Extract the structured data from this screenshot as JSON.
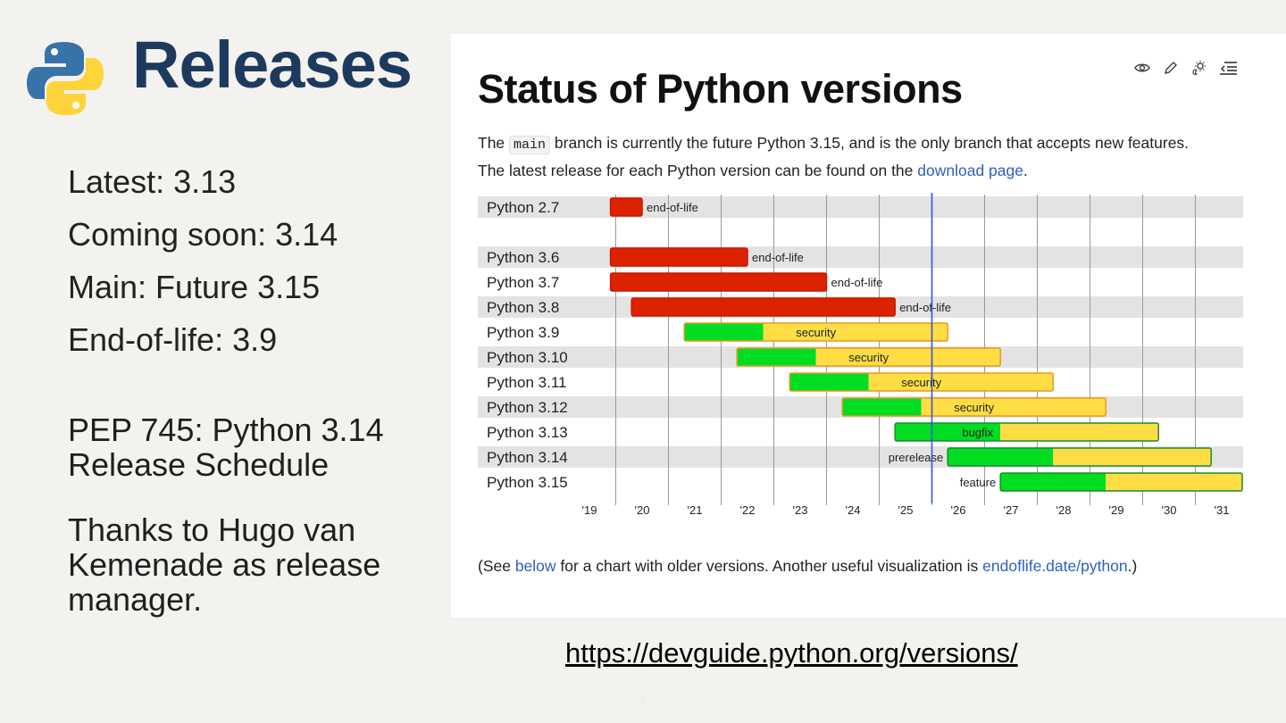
{
  "slide": {
    "title": "Releases",
    "facts": [
      "Latest: 3.13",
      "Coming soon: 3.14",
      "Main: Future 3.15",
      "End-of-life: 3.9"
    ],
    "pep_text": "PEP 745: Python 3.14 Release Schedule",
    "thanks_text": "Thanks to Hugo van Kemenade as release manager.",
    "url": "https://devguide.python.org/versions/",
    "page_number": "2"
  },
  "doc": {
    "heading": "Status of Python versions",
    "intro_before": "The ",
    "intro_code": "main",
    "intro_middle": " branch is currently the future Python 3.15, and is the only branch that accepts new features. The latest release for each Python version can be found on the ",
    "intro_link": "download page",
    "intro_end": ".",
    "foot_before": "(See ",
    "foot_link1": "below",
    "foot_middle": " for a chart with older versions. Another useful visualization is ",
    "foot_link2": "endoflife.date/python",
    "foot_end": ".)",
    "toolbar_icons": [
      "view-source-icon",
      "edit-icon",
      "theme-toggle-icon",
      "table-of-contents-icon"
    ]
  },
  "chart_data": {
    "type": "bar",
    "x_ticks": [
      "'19",
      "'20",
      "'21",
      "'22",
      "'23",
      "'24",
      "'25",
      "'26",
      "'27",
      "'28",
      "'29",
      "'30",
      "'31"
    ],
    "xlim": [
      2019.0,
      2031.5
    ],
    "today": 2025.0,
    "colors": {
      "end-of-life": "#dd2200",
      "security": "#ffdd44",
      "bugfix": "#00dd22",
      "feature": "#00dd22",
      "prerelease": "#00dd22",
      "today_line": "#3355dd",
      "grid": "#9a9a9a",
      "stripe": "#e3e3e3"
    },
    "rows": [
      {
        "label": "Python 2.7",
        "segments": [
          {
            "start": 2018.9,
            "end": 2019.5,
            "status": "end-of-life"
          }
        ],
        "text": "end-of-life",
        "text_pos": "after"
      },
      {
        "label": "",
        "segments": [],
        "text": "",
        "text_pos": "none"
      },
      {
        "label": "Python 3.6",
        "segments": [
          {
            "start": 2018.9,
            "end": 2021.5,
            "status": "end-of-life"
          }
        ],
        "text": "end-of-life",
        "text_pos": "after"
      },
      {
        "label": "Python 3.7",
        "segments": [
          {
            "start": 2018.9,
            "end": 2023.0,
            "status": "end-of-life"
          }
        ],
        "text": "end-of-life",
        "text_pos": "after"
      },
      {
        "label": "Python 3.8",
        "segments": [
          {
            "start": 2019.3,
            "end": 2024.3,
            "status": "end-of-life"
          }
        ],
        "text": "end-of-life",
        "text_pos": "after"
      },
      {
        "label": "Python 3.9",
        "segments": [
          {
            "start": 2020.3,
            "end": 2021.8,
            "status": "bugfix"
          },
          {
            "start": 2021.8,
            "end": 2025.3,
            "status": "security"
          }
        ],
        "text": "security",
        "text_pos": "inside"
      },
      {
        "label": "Python 3.10",
        "segments": [
          {
            "start": 2021.3,
            "end": 2022.8,
            "status": "bugfix"
          },
          {
            "start": 2022.8,
            "end": 2026.3,
            "status": "security"
          }
        ],
        "text": "security",
        "text_pos": "inside"
      },
      {
        "label": "Python 3.11",
        "segments": [
          {
            "start": 2022.3,
            "end": 2023.8,
            "status": "bugfix"
          },
          {
            "start": 2023.8,
            "end": 2027.3,
            "status": "security"
          }
        ],
        "text": "security",
        "text_pos": "inside"
      },
      {
        "label": "Python 3.12",
        "segments": [
          {
            "start": 2023.3,
            "end": 2024.8,
            "status": "bugfix"
          },
          {
            "start": 2024.8,
            "end": 2028.3,
            "status": "security"
          }
        ],
        "text": "security",
        "text_pos": "inside"
      },
      {
        "label": "Python 3.13",
        "segments": [
          {
            "start": 2024.3,
            "end": 2026.3,
            "status": "bugfix"
          },
          {
            "start": 2026.3,
            "end": 2029.3,
            "status": "security"
          }
        ],
        "text": "bugfix",
        "text_pos": "inside"
      },
      {
        "label": "Python 3.14",
        "segments": [
          {
            "start": 2025.3,
            "end": 2027.3,
            "status": "bugfix"
          },
          {
            "start": 2027.3,
            "end": 2030.3,
            "status": "security"
          }
        ],
        "text": "prerelease",
        "text_pos": "before"
      },
      {
        "label": "Python 3.15",
        "segments": [
          {
            "start": 2026.3,
            "end": 2028.3,
            "status": "bugfix"
          },
          {
            "start": 2028.3,
            "end": 2031.3,
            "status": "security"
          }
        ],
        "text": "feature",
        "text_pos": "before"
      }
    ]
  }
}
